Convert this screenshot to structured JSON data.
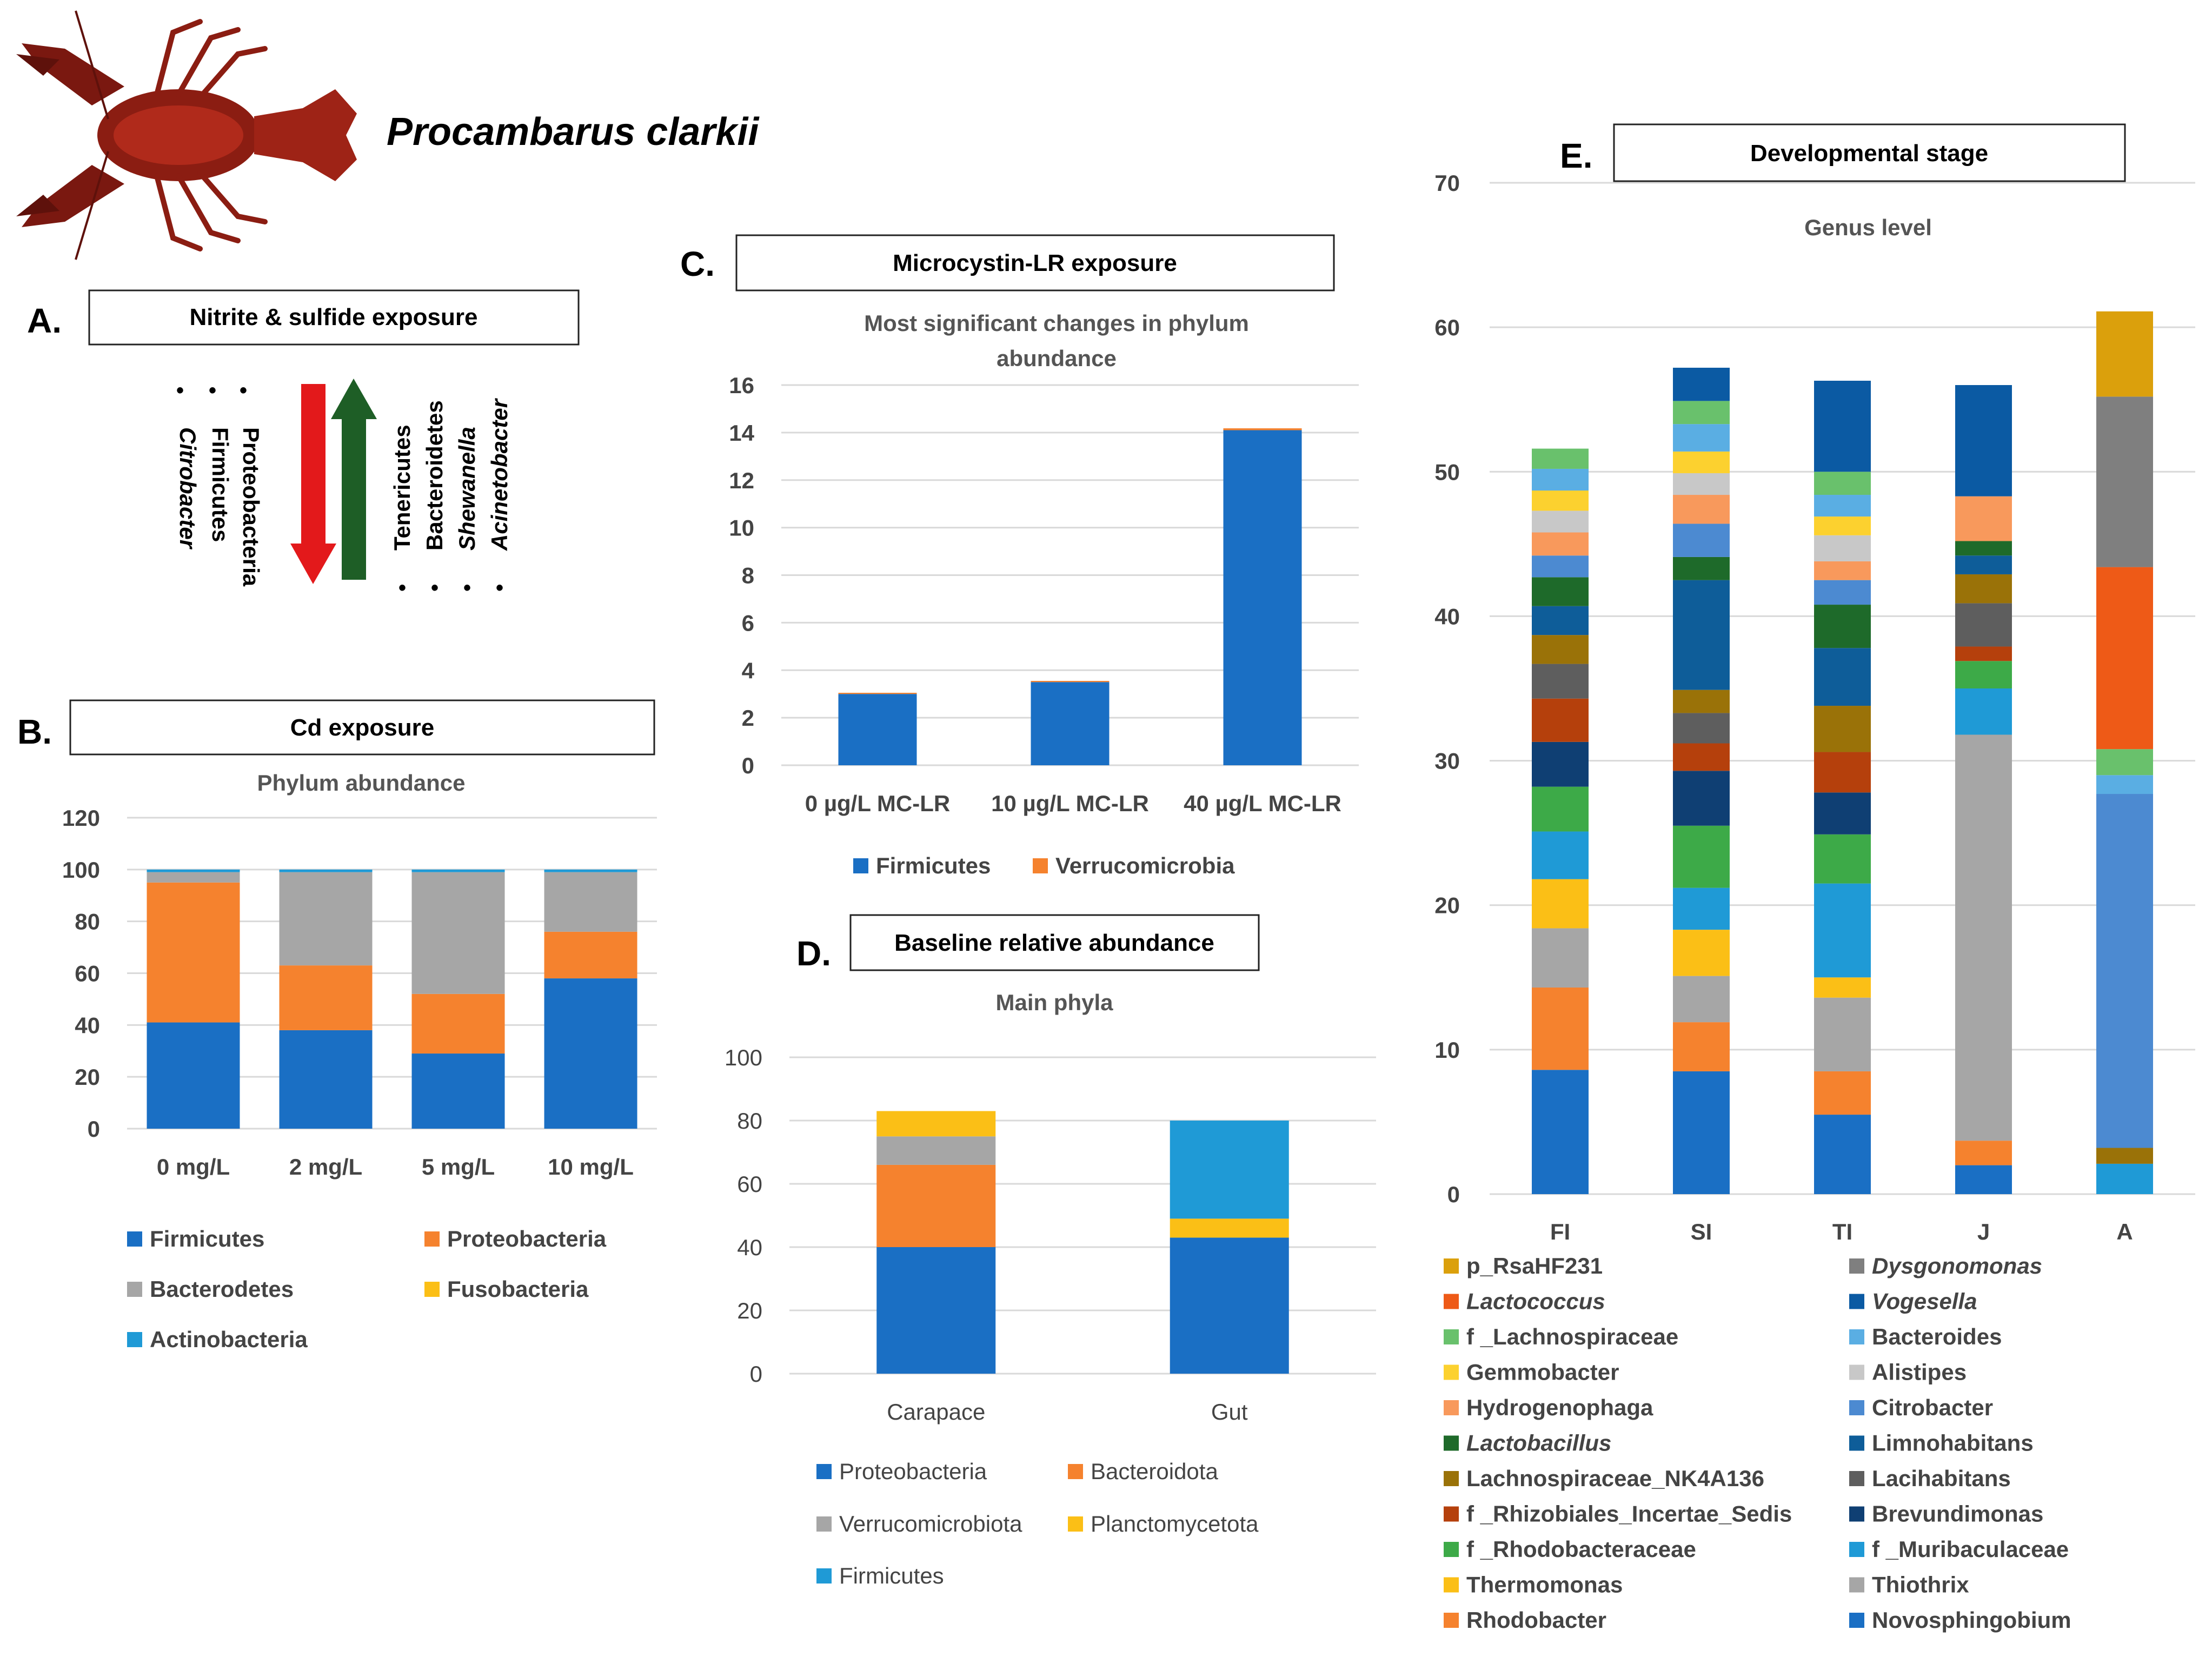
{
  "species": "Procambarus clarkii",
  "colors": {
    "blue": "#1a6fc4",
    "orange": "#f5822e",
    "gray": "#a6a6a6",
    "yellow": "#fbbf16",
    "lightblue": "#1f9ad6",
    "red_arrow": "#e3191b",
    "green_arrow": "#1e5e26"
  },
  "panelA": {
    "letter": "A.",
    "title": "Nitrite & sulfide exposure",
    "decreased": [
      "Proteobacteria",
      "Firmicutes",
      "Citrobacter"
    ],
    "increased": [
      "Tenericutes",
      "Bacteroidetes",
      "Shewanella",
      "Acinetobacter"
    ],
    "bullet": "•"
  },
  "chart_data": [
    {
      "id": "B",
      "letter": "B.",
      "box_title": "Cd exposure",
      "type": "bar",
      "stacked": true,
      "title": "Phylum abundance",
      "categories": [
        "0 mg/L",
        "2 mg/L",
        "5 mg/L",
        "10 mg/L"
      ],
      "ylim": [
        0,
        120
      ],
      "yticks": [
        0,
        20,
        40,
        60,
        80,
        100,
        120
      ],
      "series": [
        {
          "name": "Firmicutes",
          "color": "#1a6fc4",
          "values": [
            41,
            38,
            29,
            58
          ]
        },
        {
          "name": "Proteobacteria",
          "color": "#f5822e",
          "values": [
            54,
            25,
            23,
            18
          ]
        },
        {
          "name": "Bacterodetes",
          "color": "#a6a6a6",
          "values": [
            4,
            36,
            47,
            23
          ]
        },
        {
          "name": "Fusobacteria",
          "color": "#fbbf16",
          "values": [
            0,
            0,
            0,
            0
          ]
        },
        {
          "name": "Actinobacteria",
          "color": "#1f9ad6",
          "values": [
            1,
            1,
            1,
            1
          ]
        }
      ]
    },
    {
      "id": "C",
      "letter": "C.",
      "box_title": "Microcystin-LR exposure",
      "type": "bar",
      "stacked": true,
      "title_lines": [
        "Most significant changes in phylum",
        "abundance"
      ],
      "categories": [
        "0 µg/L MC-LR",
        "10 µg/L MC-LR",
        "40 µg/L MC-LR"
      ],
      "ylim": [
        0,
        16
      ],
      "yticks": [
        0,
        2,
        4,
        6,
        8,
        10,
        12,
        14,
        16
      ],
      "series": [
        {
          "name": "Firmicutes",
          "color": "#1a6fc4",
          "values": [
            3.0,
            3.5,
            14.1
          ]
        },
        {
          "name": "Verrucomicrobia",
          "color": "#f5822e",
          "values": [
            0.05,
            0.05,
            0.08
          ]
        }
      ]
    },
    {
      "id": "D",
      "letter": "D.",
      "box_title": "Baseline relative abundance",
      "type": "bar",
      "stacked": true,
      "title": "Main phyla",
      "categories": [
        "Carapace",
        "Gut"
      ],
      "ylim": [
        0,
        100
      ],
      "yticks": [
        0,
        20,
        40,
        60,
        80,
        100
      ],
      "series": [
        {
          "name": "Proteobacteria",
          "color": "#1a6fc4",
          "values": [
            40,
            43
          ]
        },
        {
          "name": "Bacteroidota",
          "color": "#f5822e",
          "values": [
            26,
            0
          ]
        },
        {
          "name": "Verrucomicrobiota",
          "color": "#a6a6a6",
          "values": [
            9,
            0
          ]
        },
        {
          "name": "Planctomycetota",
          "color": "#fbbf16",
          "values": [
            8,
            6
          ]
        },
        {
          "name": "Firmicutes",
          "color": "#1f9ad6",
          "values": [
            0,
            31
          ]
        }
      ]
    },
    {
      "id": "E",
      "letter": "E.",
      "box_title": "Developmental stage",
      "type": "bar",
      "stacked": true,
      "title": "Genus level",
      "categories": [
        "FI",
        "SI",
        "TI",
        "J",
        "A"
      ],
      "ylim": [
        0,
        70
      ],
      "yticks": [
        0,
        10,
        20,
        30,
        40,
        50,
        60,
        70
      ],
      "series": [
        {
          "name": "Novosphingobium",
          "color": "#1a6fc4",
          "italic": false,
          "values": [
            8.6,
            8.5,
            5.5,
            2.0,
            0
          ]
        },
        {
          "name": "Rhodobacter",
          "color": "#f5822e",
          "italic": false,
          "values": [
            5.7,
            3.4,
            3.0,
            1.7,
            0
          ]
        },
        {
          "name": "Thiothrix",
          "color": "#a6a6a6",
          "italic": false,
          "values": [
            4.1,
            3.2,
            5.1,
            28.1,
            0
          ]
        },
        {
          "name": "Thermomonas",
          "color": "#fbbf16",
          "italic": false,
          "values": [
            3.4,
            3.2,
            1.4,
            0,
            0
          ]
        },
        {
          "name": "f _Muribaculaceae",
          "color": "#1f9ad6",
          "italic": false,
          "values": [
            3.3,
            2.9,
            6.5,
            3.2,
            2.1
          ]
        },
        {
          "name": "f _Rhodobacteraceae",
          "color": "#3daa48",
          "italic": false,
          "values": [
            3.1,
            4.3,
            3.4,
            1.9,
            0
          ]
        },
        {
          "name": "Brevundimonas",
          "color": "#0f3f73",
          "italic": false,
          "values": [
            3.1,
            3.8,
            2.9,
            0,
            0
          ]
        },
        {
          "name": "f _Rhizobiales_Incertae_Sedis",
          "color": "#b5400c",
          "italic": false,
          "values": [
            3.0,
            1.9,
            2.8,
            1.0,
            0
          ]
        },
        {
          "name": "Lacihabitans",
          "color": "#5e5e5e",
          "italic": false,
          "values": [
            2.4,
            2.1,
            0,
            3.0,
            0
          ]
        },
        {
          "name": "Lachnospiraceae_NK4A136",
          "color": "#9a7208",
          "italic": false,
          "values": [
            2.0,
            1.6,
            3.2,
            2.0,
            1.1
          ]
        },
        {
          "name": "Limnohabitans",
          "color": "#0e5d99",
          "italic": false,
          "values": [
            2.0,
            7.6,
            4.0,
            1.3,
            0
          ]
        },
        {
          "name": "Lactobacillus",
          "color": "#1e6a2a",
          "italic": true,
          "values": [
            2.0,
            1.6,
            3.0,
            1.0,
            0
          ]
        },
        {
          "name": "Citrobacter",
          "color": "#4c8ad1",
          "italic": false,
          "values": [
            1.5,
            2.3,
            1.7,
            0,
            24.5
          ]
        },
        {
          "name": "Hydrogenophaga",
          "color": "#f8995c",
          "italic": false,
          "values": [
            1.6,
            2.0,
            1.3,
            3.1,
            0
          ]
        },
        {
          "name": "Alistipes",
          "color": "#c8c8c8",
          "italic": false,
          "values": [
            1.5,
            1.5,
            1.8,
            0,
            0
          ]
        },
        {
          "name": "Gemmobacter",
          "color": "#fcd12f",
          "italic": false,
          "values": [
            1.4,
            1.5,
            1.3,
            0,
            0
          ]
        },
        {
          "name": "Bacteroides",
          "color": "#5aaee3",
          "italic": false,
          "values": [
            1.5,
            1.9,
            1.5,
            0,
            1.3
          ]
        },
        {
          "name": "f _Lachnospiraceae",
          "color": "#69c16c",
          "italic": false,
          "values": [
            1.4,
            1.6,
            1.6,
            0,
            1.8
          ]
        },
        {
          "name": "Vogesella",
          "color": "#0b5aa3",
          "italic": true,
          "values": [
            0,
            2.3,
            6.3,
            7.7,
            0
          ]
        },
        {
          "name": "Lactococcus",
          "color": "#ee5a17",
          "italic": true,
          "values": [
            0,
            0,
            0,
            0,
            12.6
          ]
        },
        {
          "name": "Dysgonomonas",
          "color": "#7f7f7f",
          "italic": true,
          "values": [
            0,
            0,
            0,
            0,
            11.8
          ]
        },
        {
          "name": "p_RsaHF231",
          "color": "#dba00c",
          "italic": false,
          "values": [
            0,
            0,
            0,
            0,
            5.9
          ]
        }
      ],
      "legend_left": [
        "p_RsaHF231",
        "Lactococcus",
        "f _Lachnospiraceae",
        "Gemmobacter",
        "Hydrogenophaga",
        "Lactobacillus",
        "Lachnospiraceae_NK4A136",
        "f _Rhizobiales_Incertae_Sedis",
        "f _Rhodobacteraceae",
        "Thermomonas",
        "Rhodobacter"
      ],
      "legend_right": [
        "Dysgonomonas",
        "Vogesella",
        "Bacteroides",
        "Alistipes",
        "Citrobacter",
        "Limnohabitans",
        "Lacihabitans",
        "Brevundimonas",
        "f _Muribaculaceae",
        "Thiothrix",
        "Novosphingobium"
      ]
    }
  ]
}
